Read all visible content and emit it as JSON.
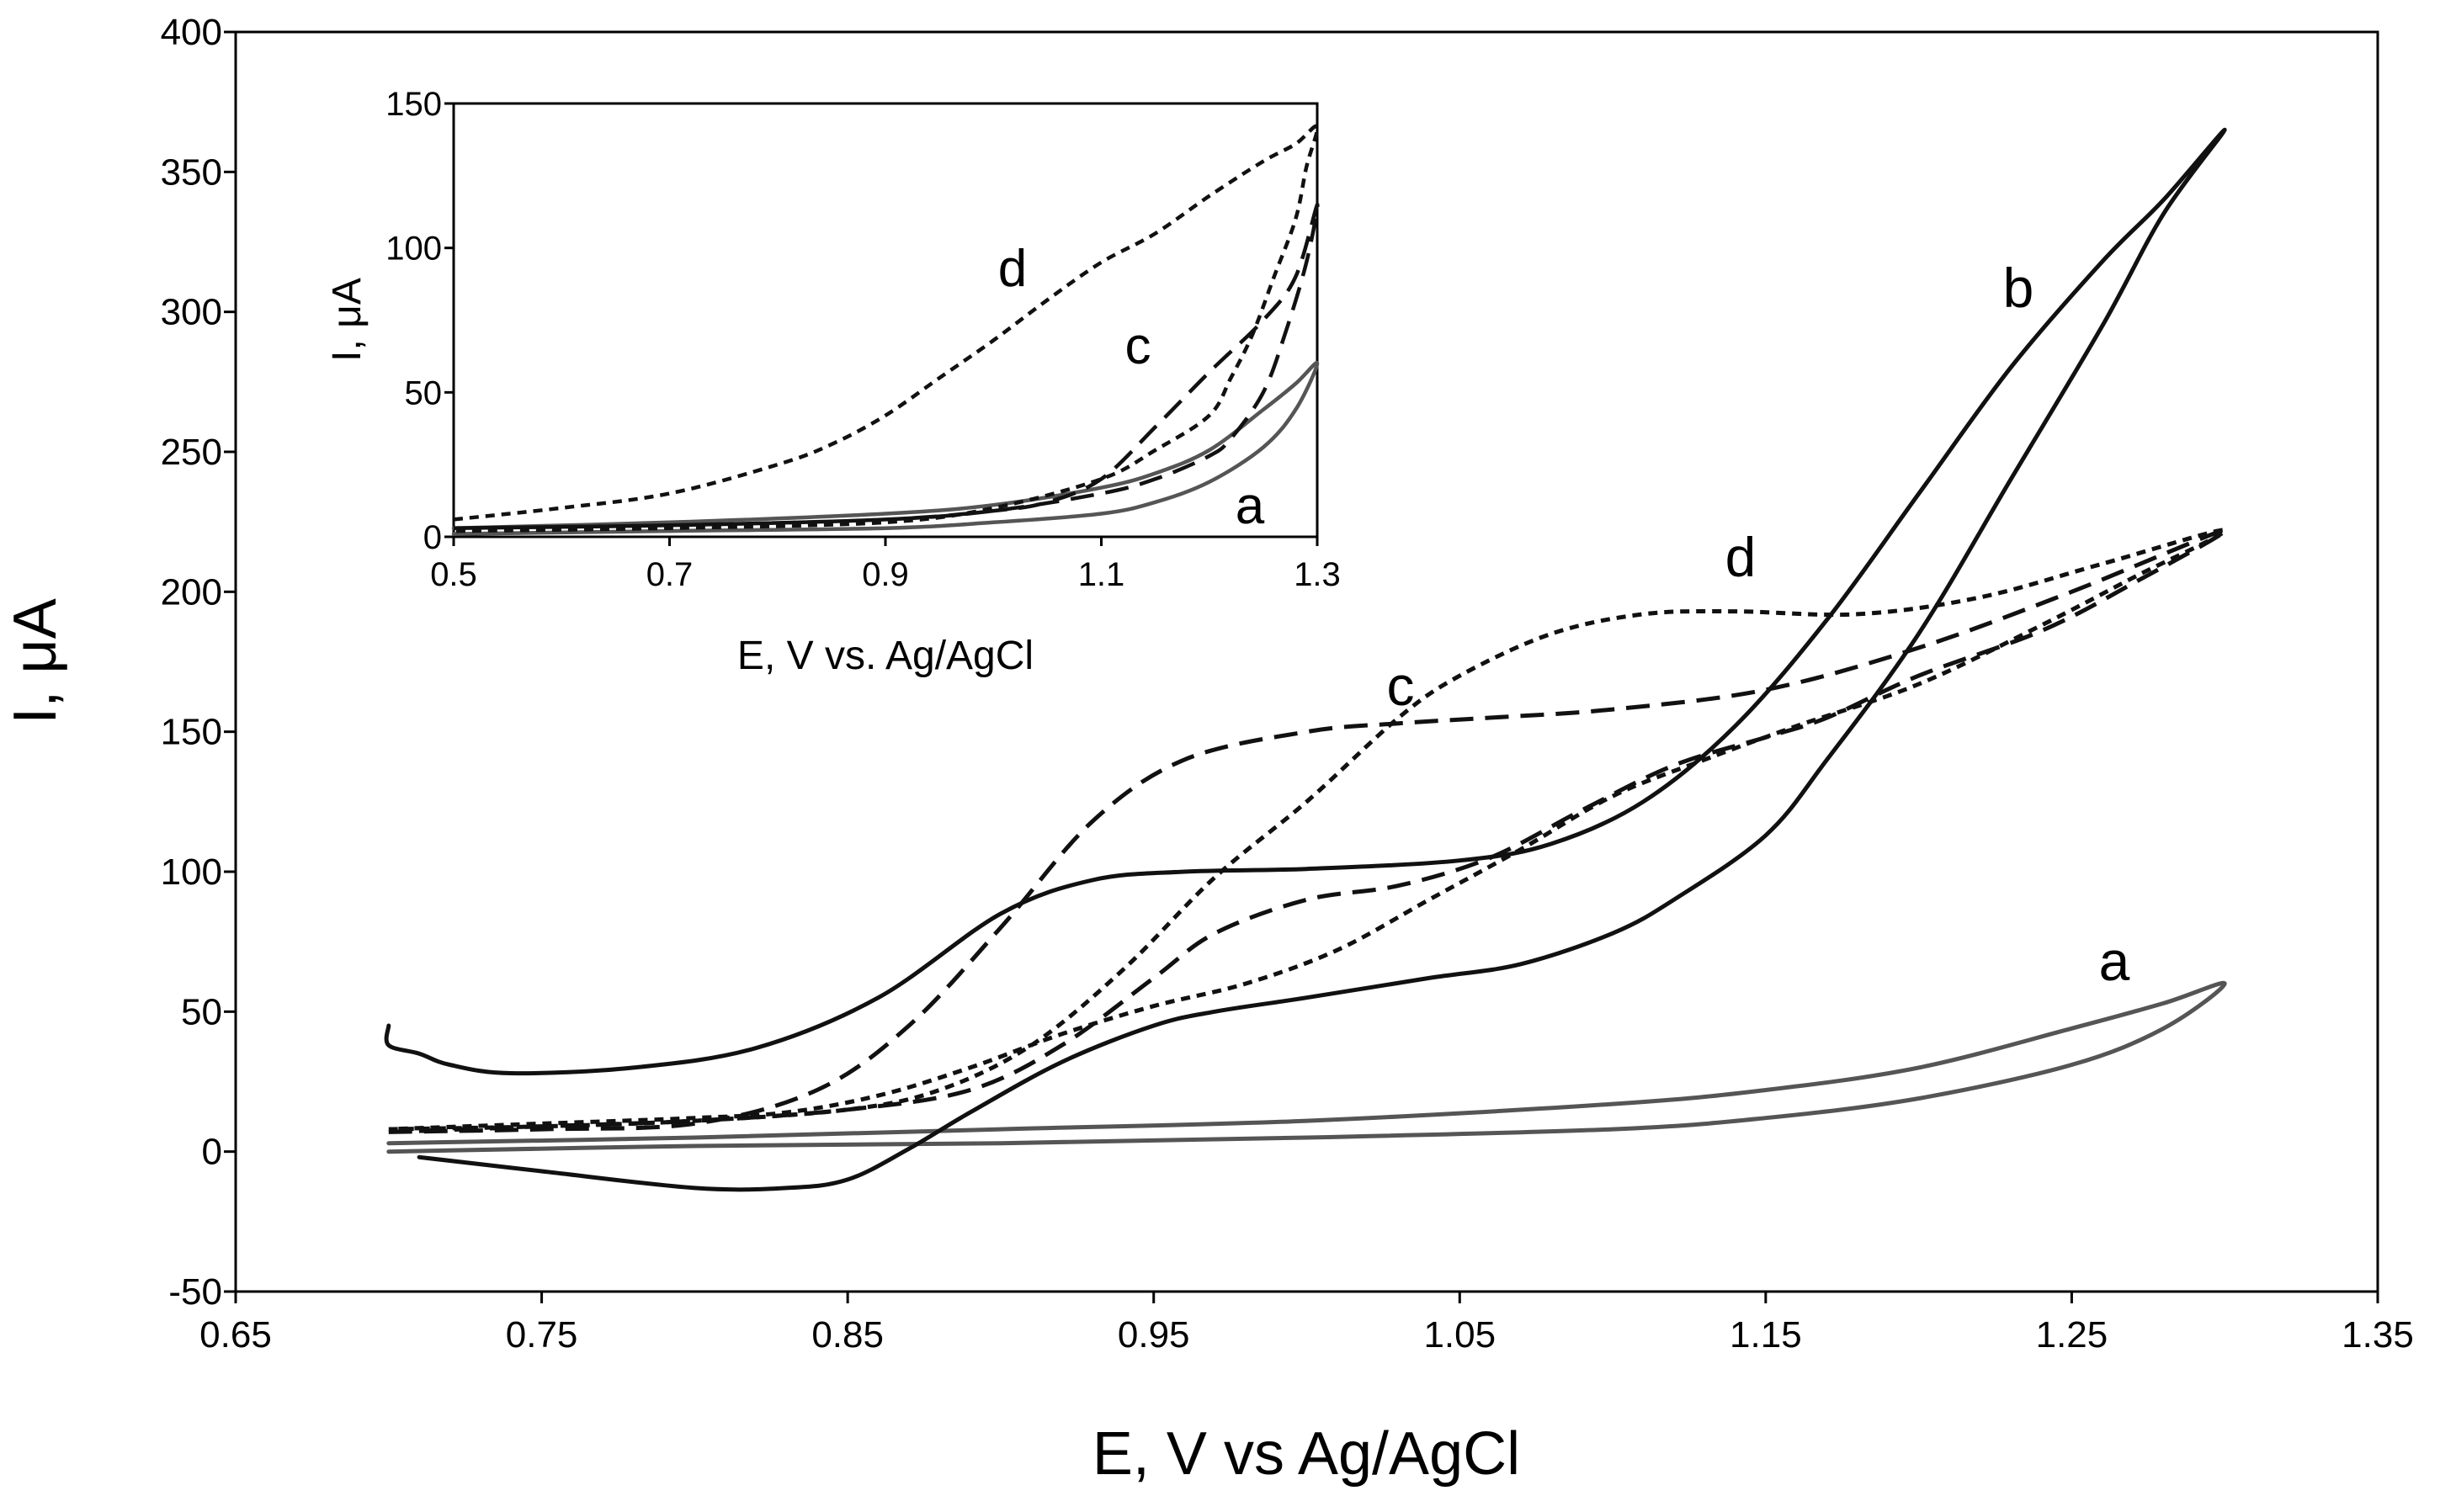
{
  "chart_data": [
    {
      "type": "line",
      "panel": "main",
      "xlabel": "E, V vs Ag/AgCl",
      "ylabel": "I, μA",
      "xlim": [
        0.65,
        1.35
      ],
      "ylim": [
        -50,
        400
      ],
      "xticks": [
        "0.65",
        "0.75",
        "0.85",
        "0.95",
        "1.05",
        "1.15",
        "1.25",
        "1.35"
      ],
      "yticks": [
        "-50",
        "0",
        "50",
        "100",
        "150",
        "200",
        "250",
        "300",
        "350",
        "400"
      ],
      "grid": false,
      "series": [
        {
          "name": "a",
          "color": "#555555",
          "style": "solid",
          "x": [
            0.7,
            0.8,
            0.9,
            1.0,
            1.1,
            1.15,
            1.2,
            1.25,
            1.28,
            1.3,
            1.28,
            1.25,
            1.2,
            1.15,
            1.1,
            1.0,
            0.9,
            0.8,
            0.7
          ],
          "y": [
            3,
            5,
            8,
            11,
            17,
            22,
            30,
            44,
            53,
            60,
            44,
            31,
            19,
            12,
            8,
            5,
            3,
            2,
            0
          ]
        },
        {
          "name": "b",
          "color": "#111111",
          "style": "solid",
          "x": [
            0.7,
            0.7,
            0.71,
            0.72,
            0.74,
            0.78,
            0.82,
            0.86,
            0.9,
            0.93,
            0.96,
            1.0,
            1.05,
            1.08,
            1.11,
            1.14,
            1.17,
            1.2,
            1.23,
            1.26,
            1.28,
            1.3,
            1.28,
            1.26,
            1.23,
            1.2,
            1.17,
            1.15,
            1.12,
            1.1,
            1.07,
            1.04,
            1.0,
            0.97,
            0.95,
            0.92,
            0.89,
            0.87,
            0.85,
            0.83,
            0.8,
            0.75,
            0.71
          ],
          "y": [
            45,
            38,
            35,
            31,
            28,
            30,
            37,
            55,
            85,
            97,
            100,
            101,
            104,
            110,
            125,
            152,
            190,
            235,
            280,
            318,
            340,
            365,
            335,
            295,
            240,
            185,
            140,
            113,
            90,
            78,
            67,
            62,
            55,
            50,
            45,
            32,
            14,
            1,
            -10,
            -13,
            -13,
            -7,
            -2
          ]
        },
        {
          "name": "c",
          "color": "#111111",
          "style": "dashed",
          "x": [
            0.7,
            0.75,
            0.8,
            0.84,
            0.87,
            0.9,
            0.93,
            0.96,
            1.0,
            1.03,
            1.06,
            1.1,
            1.15,
            1.2,
            1.25,
            1.3,
            1.27,
            1.24,
            1.2,
            1.17,
            1.15,
            1.12,
            1.09,
            1.06,
            1.03,
            1.0,
            0.97,
            0.95,
            0.92,
            0.89,
            0.85,
            0.8,
            0.75,
            0.7
          ],
          "y": [
            7,
            8,
            10,
            22,
            45,
            80,
            118,
            140,
            150,
            153,
            155,
            158,
            165,
            180,
            200,
            222,
            203,
            186,
            170,
            155,
            148,
            138,
            122,
            105,
            95,
            90,
            78,
            62,
            38,
            22,
            15,
            11,
            9,
            7
          ]
        },
        {
          "name": "d",
          "color": "#111111",
          "style": "dotted",
          "x": [
            0.7,
            0.75,
            0.8,
            0.85,
            0.88,
            0.91,
            0.94,
            0.97,
            1.0,
            1.03,
            1.05,
            1.08,
            1.11,
            1.14,
            1.18,
            1.22,
            1.26,
            1.3,
            1.27,
            1.24,
            1.2,
            1.16,
            1.13,
            1.1,
            1.07,
            1.04,
            1.01,
            0.98,
            0.95,
            0.92,
            0.89,
            0.86,
            0.83,
            0.8,
            0.75,
            0.7
          ],
          "y": [
            8,
            9,
            11,
            15,
            22,
            38,
            65,
            98,
            125,
            155,
            170,
            185,
            192,
            193,
            192,
            198,
            210,
            222,
            205,
            188,
            167,
            152,
            140,
            127,
            108,
            90,
            72,
            60,
            52,
            42,
            30,
            20,
            14,
            12,
            10,
            8
          ]
        }
      ]
    },
    {
      "type": "line",
      "panel": "inset",
      "xlabel": "E, V vs. Ag/AgCl",
      "ylabel": "I, μA",
      "xlim": [
        0.5,
        1.3
      ],
      "ylim": [
        0,
        150
      ],
      "xticks": [
        "0.5",
        "0.7",
        "0.9",
        "1.1",
        "1.3"
      ],
      "yticks": [
        "0",
        "50",
        "100",
        "150"
      ],
      "grid": false,
      "series": [
        {
          "name": "a",
          "color": "#555555",
          "style": "solid",
          "x": [
            0.5,
            0.7,
            0.9,
            1.0,
            1.1,
            1.15,
            1.2,
            1.25,
            1.28,
            1.3,
            1.28,
            1.25,
            1.2,
            1.15,
            1.1,
            1.0,
            0.9,
            0.7,
            0.5
          ],
          "y": [
            3,
            5,
            8,
            11,
            17,
            22,
            30,
            44,
            53,
            60,
            44,
            31,
            19,
            12,
            8,
            5,
            3,
            2,
            1
          ]
        },
        {
          "name": "c",
          "color": "#111111",
          "style": "dashed",
          "x": [
            0.5,
            0.7,
            0.9,
            1.0,
            1.05,
            1.1,
            1.15,
            1.2,
            1.25,
            1.28,
            1.3,
            1.29,
            1.27,
            1.25,
            1.22,
            1.2,
            1.15,
            1.1,
            1.0,
            0.9,
            0.7,
            0.5
          ],
          "y": [
            3,
            4,
            6,
            9,
            12,
            20,
            38,
            57,
            75,
            90,
            115,
            95,
            70,
            50,
            34,
            28,
            20,
            15,
            9,
            6,
            4,
            3
          ]
        },
        {
          "name": "d",
          "color": "#111111",
          "style": "dotted",
          "x": [
            0.5,
            0.6,
            0.7,
            0.8,
            0.85,
            0.9,
            0.95,
            1.0,
            1.05,
            1.1,
            1.15,
            1.2,
            1.25,
            1.28,
            1.3,
            1.29,
            1.28,
            1.26,
            1.24,
            1.22,
            1.2,
            1.15,
            1.1,
            1.0,
            0.9,
            0.7,
            0.5
          ],
          "y": [
            6,
            10,
            15,
            25,
            32,
            42,
            55,
            68,
            82,
            95,
            105,
            118,
            130,
            136,
            142,
            128,
            110,
            90,
            70,
            55,
            42,
            30,
            20,
            10,
            5,
            3,
            2
          ]
        }
      ]
    }
  ]
}
